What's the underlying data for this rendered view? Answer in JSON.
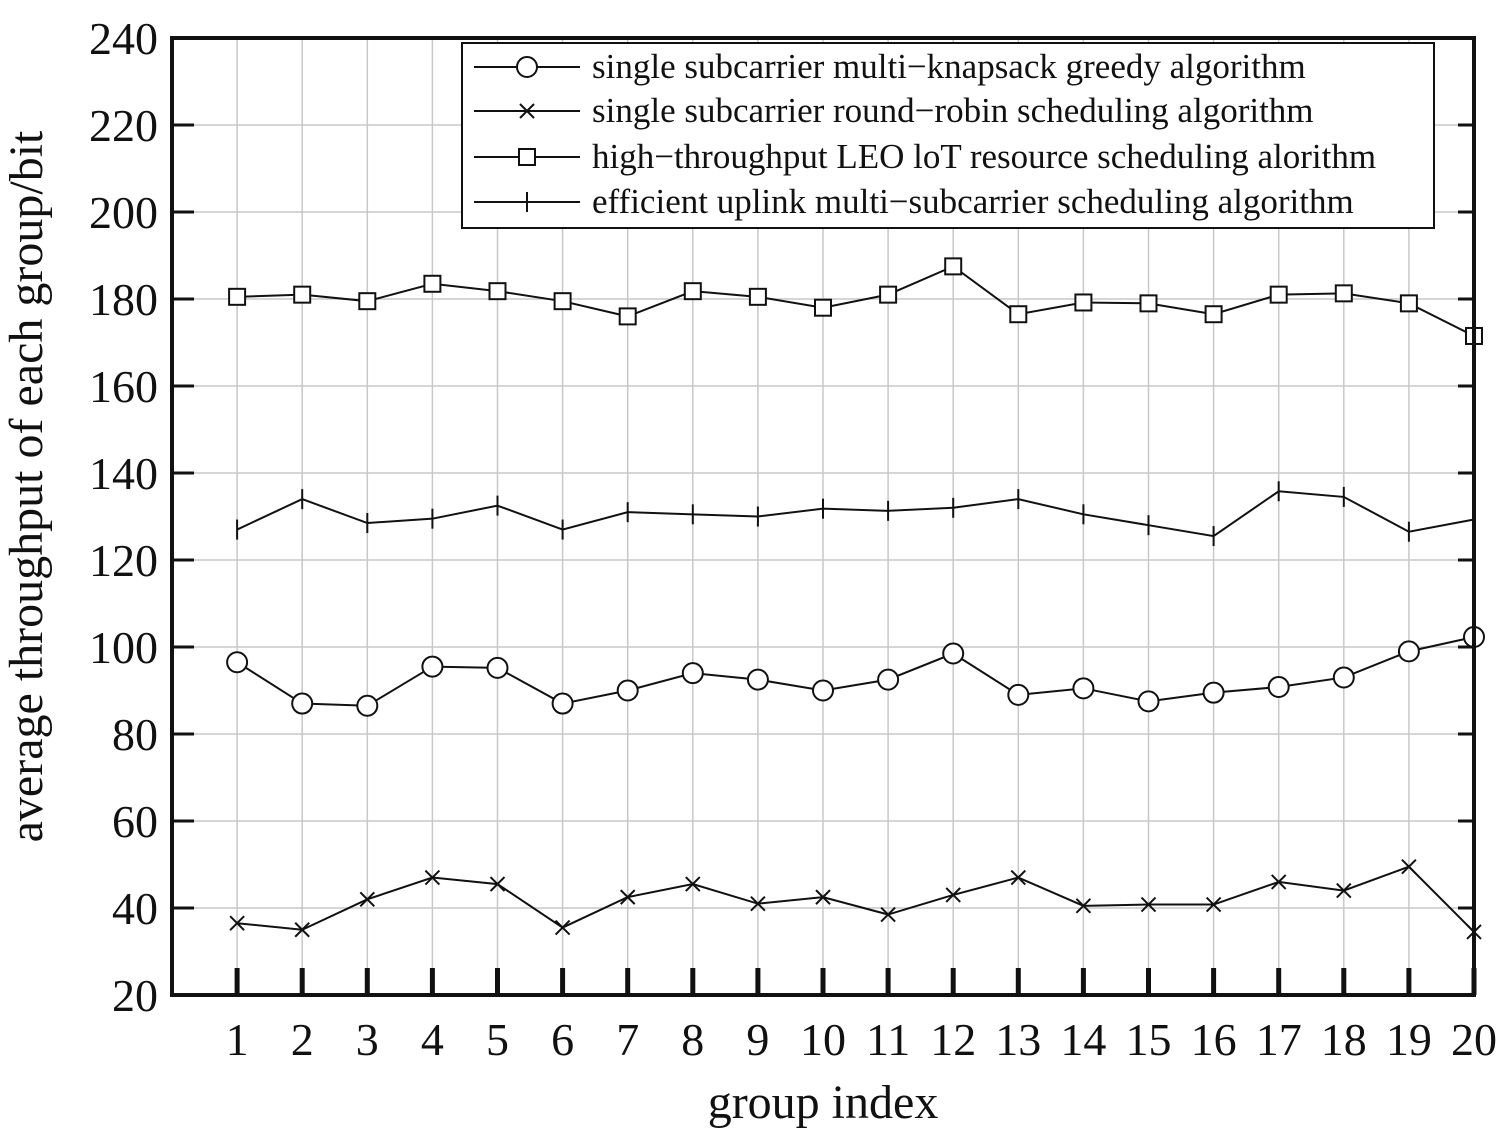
{
  "chart_data": {
    "type": "line",
    "xlabel": "group index",
    "ylabel": "average throughput of each group/bit",
    "x": [
      1,
      2,
      3,
      4,
      5,
      6,
      7,
      8,
      9,
      10,
      11,
      12,
      13,
      14,
      15,
      16,
      17,
      18,
      19,
      20
    ],
    "x_tick_labels": [
      "1",
      "2",
      "3",
      "4",
      "5",
      "6",
      "7",
      "8",
      "9",
      "10",
      "11",
      "12",
      "13",
      "14",
      "15",
      "16",
      "17",
      "18",
      "19",
      "20"
    ],
    "y_ticks": [
      20,
      40,
      60,
      80,
      100,
      120,
      140,
      160,
      180,
      200,
      220,
      240
    ],
    "y_tick_labels": [
      "20",
      "40",
      "60",
      "80",
      "100",
      "120",
      "140",
      "160",
      "180",
      "200",
      "220",
      "240"
    ],
    "xlim": [
      0,
      20
    ],
    "ylim": [
      20,
      240
    ],
    "grid": true,
    "legend_position": "top-right",
    "series": [
      {
        "name": "single subcarrier multi−knapsack greedy algorithm",
        "marker": "circle",
        "values": [
          96.5,
          87,
          86.5,
          95.5,
          95.2,
          87,
          90,
          94,
          92.5,
          90,
          92.5,
          98.5,
          89,
          90.5,
          87.5,
          89.5,
          90.8,
          93,
          99,
          102.3
        ]
      },
      {
        "name": "single subcarrier round−robin scheduling algorithm",
        "marker": "x",
        "values": [
          36.5,
          35,
          42,
          47,
          45.5,
          35.5,
          42.5,
          45.5,
          41,
          42.5,
          38.5,
          43,
          47,
          40.5,
          40.8,
          40.8,
          46,
          44,
          49.5,
          34.5
        ]
      },
      {
        "name": "high−throughput LEO loT resource scheduling alorithm",
        "marker": "square",
        "values": [
          180.5,
          181,
          179.5,
          183.5,
          181.8,
          179.5,
          176,
          181.8,
          180.5,
          178,
          181,
          187.5,
          176.5,
          179.2,
          179,
          176.5,
          181,
          181.3,
          179,
          171.5
        ]
      },
      {
        "name": "efficient uplink multi−subcarrier scheduling algorithm",
        "marker": "plus",
        "values": [
          127,
          134,
          128.5,
          129.5,
          132.5,
          127,
          131,
          130.5,
          130,
          131.8,
          131.3,
          132,
          134,
          130.5,
          128,
          125.5,
          135.8,
          134.5,
          126.5,
          129.3
        ]
      }
    ]
  }
}
